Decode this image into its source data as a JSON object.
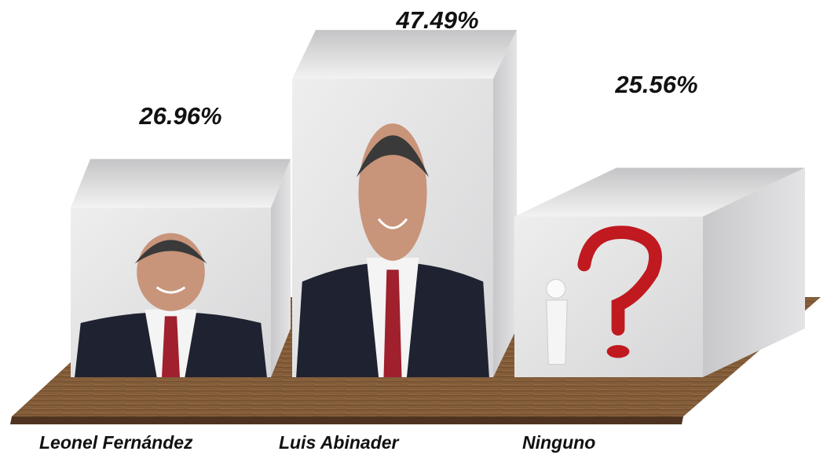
{
  "chart_data": {
    "type": "bar",
    "categories": [
      "Leonel Fernández",
      "Luis Abinader",
      "Ninguno"
    ],
    "values": [
      26.96,
      47.49,
      25.56
    ],
    "value_labels": [
      "26.96%",
      "47.49%",
      "25.56%"
    ]
  }
}
